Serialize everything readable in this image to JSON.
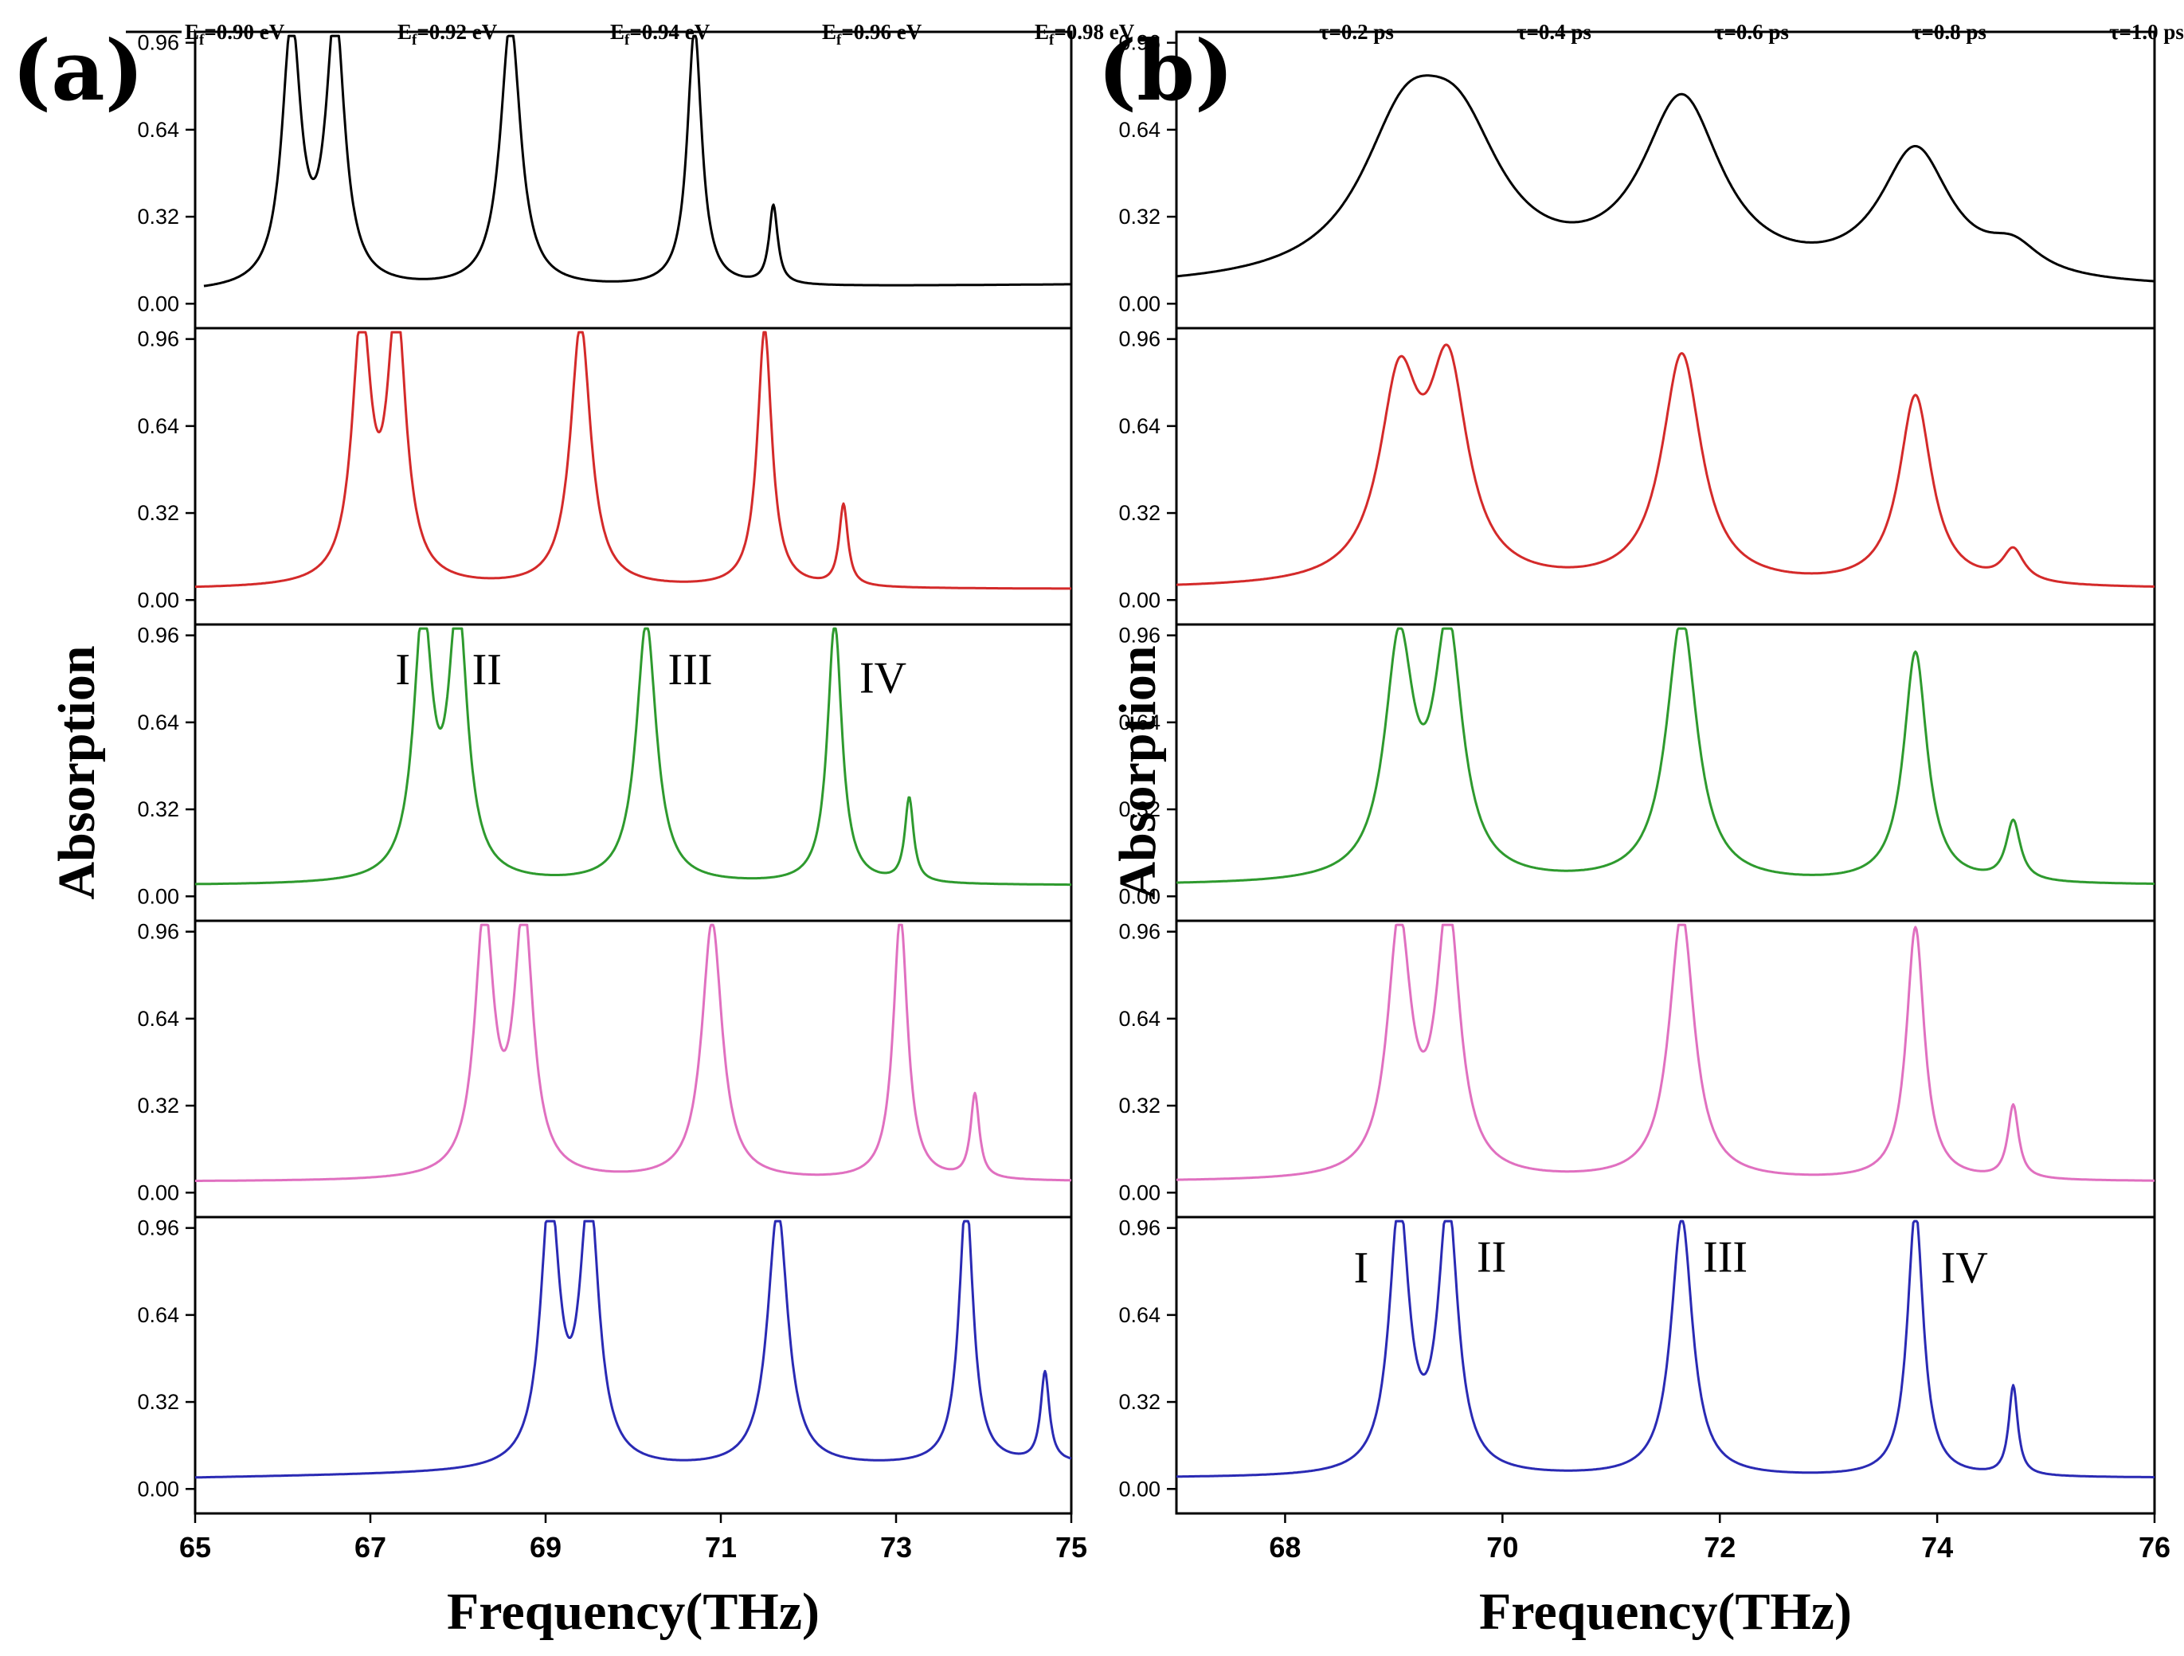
{
  "chart_data": [
    {
      "panel": "(a)",
      "type": "line",
      "layout": "stacked",
      "xlabel": "Frequency(THz)",
      "ylabel": "Absorption",
      "xlim": [
        65,
        75
      ],
      "ylim": [
        -0.09,
        1.0
      ],
      "xticks": [
        65,
        67,
        69,
        71,
        73,
        75
      ],
      "yticks": [
        0.0,
        0.32,
        0.64,
        0.96
      ],
      "ytick_labels": [
        "0.00",
        "0.32",
        "0.64",
        "0.96"
      ],
      "legend": [
        "E_f=0.90 eV",
        "E_f=0.92 eV",
        "E_f=0.94 eV",
        "E_f=0.96 eV",
        "E_f=0.98 eV"
      ],
      "series": [
        {
          "name": "E_f=0.90 eV",
          "color": "#000000",
          "baseline": 0.04,
          "tail": 0.07,
          "x_start": 65.1,
          "peaks": [
            {
              "x": 66.1,
              "a": 0.95,
              "w": 0.13
            },
            {
              "x": 66.6,
              "a": 0.98,
              "w": 0.13
            },
            {
              "x": 68.6,
              "a": 0.98,
              "w": 0.14
            },
            {
              "x": 70.7,
              "a": 0.95,
              "w": 0.1
            },
            {
              "x": 71.6,
              "a": 0.29,
              "w": 0.06
            }
          ]
        },
        {
          "name": "E_f=0.92 eV",
          "color": "#d42a2a",
          "baseline": 0.04,
          "tail": 0.04,
          "x_start": 65.0,
          "peaks": [
            {
              "x": 66.9,
              "a": 0.95,
              "w": 0.13
            },
            {
              "x": 67.3,
              "a": 0.98,
              "w": 0.13
            },
            {
              "x": 69.4,
              "a": 0.97,
              "w": 0.14
            },
            {
              "x": 71.5,
              "a": 0.95,
              "w": 0.1
            },
            {
              "x": 72.4,
              "a": 0.3,
              "w": 0.06
            }
          ]
        },
        {
          "name": "E_f=0.94 eV",
          "color": "#2e9a2e",
          "baseline": 0.04,
          "tail": 0.04,
          "x_start": 65.0,
          "peaks": [
            {
              "x": 67.6,
              "a": 0.95,
              "w": 0.13
            },
            {
              "x": 68.0,
              "a": 0.98,
              "w": 0.13
            },
            {
              "x": 70.15,
              "a": 0.96,
              "w": 0.14
            },
            {
              "x": 72.3,
              "a": 0.96,
              "w": 0.1
            },
            {
              "x": 73.15,
              "a": 0.31,
              "w": 0.06
            }
          ]
        },
        {
          "name": "E_f=0.96 eV",
          "color": "#e070c0",
          "baseline": 0.04,
          "tail": 0.04,
          "x_start": 65.0,
          "peaks": [
            {
              "x": 68.3,
              "a": 0.95,
              "w": 0.13
            },
            {
              "x": 68.75,
              "a": 0.96,
              "w": 0.13
            },
            {
              "x": 70.9,
              "a": 0.95,
              "w": 0.14
            },
            {
              "x": 73.05,
              "a": 0.97,
              "w": 0.1
            },
            {
              "x": 73.9,
              "a": 0.31,
              "w": 0.06
            }
          ]
        },
        {
          "name": "E_f=0.98 eV",
          "color": "#2a2ab4",
          "baseline": 0.04,
          "tail": 0.09,
          "x_start": 65.0,
          "peaks": [
            {
              "x": 69.05,
              "a": 0.98,
              "w": 0.13
            },
            {
              "x": 69.5,
              "a": 0.98,
              "w": 0.13
            },
            {
              "x": 71.65,
              "a": 0.95,
              "w": 0.14
            },
            {
              "x": 73.8,
              "a": 0.98,
              "w": 0.1
            },
            {
              "x": 74.7,
              "a": 0.33,
              "w": 0.06
            }
          ]
        }
      ],
      "annotations": [
        {
          "text": "I",
          "row": 2,
          "x": 67.37,
          "y": 0.78
        },
        {
          "text": "II",
          "row": 2,
          "x": 68.33,
          "y": 0.78
        },
        {
          "text": "III",
          "row": 2,
          "x": 70.65,
          "y": 0.78
        },
        {
          "text": "IV",
          "row": 2,
          "x": 72.85,
          "y": 0.75
        }
      ]
    },
    {
      "panel": "(b)",
      "type": "line",
      "layout": "stacked",
      "xlabel": "Frequency(THz)",
      "ylabel": "Absorption",
      "xlim": [
        67,
        76
      ],
      "ylim": [
        -0.09,
        1.0
      ],
      "xticks": [
        68,
        70,
        72,
        74,
        76
      ],
      "yticks": [
        0.0,
        0.32,
        0.64,
        0.96
      ],
      "ytick_labels": [
        "0.00",
        "0.32",
        "0.64",
        "0.96"
      ],
      "legend": [
        "τ=0.2 ps",
        "τ=0.4 ps",
        "τ=0.6 ps",
        "τ=0.8 ps",
        "τ=1.0 ps"
      ],
      "series": [
        {
          "name": "τ=0.2 ps",
          "color": "#000000",
          "baseline": 0.05,
          "tail": 0.05,
          "x_start": 67.0,
          "peaks": [
            {
              "x": 69.1,
              "a": 0.5,
              "w": 0.5
            },
            {
              "x": 69.6,
              "a": 0.45,
              "w": 0.5
            },
            {
              "x": 71.65,
              "a": 0.66,
              "w": 0.45
            },
            {
              "x": 73.8,
              "a": 0.48,
              "w": 0.4
            },
            {
              "x": 74.7,
              "a": 0.1,
              "w": 0.3
            }
          ]
        },
        {
          "name": "τ=0.4 ps",
          "color": "#d42a2a",
          "baseline": 0.04,
          "tail": 0.04,
          "x_start": 67.0,
          "peaks": [
            {
              "x": 69.05,
              "a": 0.7,
              "w": 0.22
            },
            {
              "x": 69.5,
              "a": 0.75,
              "w": 0.22
            },
            {
              "x": 71.65,
              "a": 0.85,
              "w": 0.22
            },
            {
              "x": 73.8,
              "a": 0.7,
              "w": 0.18
            },
            {
              "x": 74.7,
              "a": 0.12,
              "w": 0.12
            }
          ]
        },
        {
          "name": "τ=0.6 ps",
          "color": "#2e9a2e",
          "baseline": 0.04,
          "tail": 0.04,
          "x_start": 67.0,
          "peaks": [
            {
              "x": 69.05,
              "a": 0.85,
              "w": 0.16
            },
            {
              "x": 69.5,
              "a": 0.9,
              "w": 0.16
            },
            {
              "x": 71.65,
              "a": 0.98,
              "w": 0.17
            },
            {
              "x": 73.8,
              "a": 0.85,
              "w": 0.13
            },
            {
              "x": 74.7,
              "a": 0.22,
              "w": 0.08
            }
          ]
        },
        {
          "name": "τ=0.8 ps",
          "color": "#e070c0",
          "baseline": 0.04,
          "tail": 0.04,
          "x_start": 67.0,
          "peaks": [
            {
              "x": 69.05,
              "a": 0.92,
              "w": 0.13
            },
            {
              "x": 69.5,
              "a": 0.98,
              "w": 0.13
            },
            {
              "x": 71.65,
              "a": 0.98,
              "w": 0.14
            },
            {
              "x": 73.8,
              "a": 0.93,
              "w": 0.1
            },
            {
              "x": 74.7,
              "a": 0.27,
              "w": 0.06
            }
          ]
        },
        {
          "name": "τ=1.0 ps",
          "color": "#2a2ab4",
          "baseline": 0.04,
          "tail": 0.04,
          "x_start": 67.0,
          "peaks": [
            {
              "x": 69.05,
              "a": 0.98,
              "w": 0.11
            },
            {
              "x": 69.5,
              "a": 0.98,
              "w": 0.11
            },
            {
              "x": 71.65,
              "a": 0.95,
              "w": 0.12
            },
            {
              "x": 73.8,
              "a": 0.98,
              "w": 0.09
            },
            {
              "x": 74.7,
              "a": 0.33,
              "w": 0.05
            }
          ]
        }
      ],
      "annotations": [
        {
          "text": "I",
          "row": 4,
          "x": 68.7,
          "y": 0.76
        },
        {
          "text": "II",
          "row": 4,
          "x": 69.9,
          "y": 0.8
        },
        {
          "text": "III",
          "row": 4,
          "x": 72.05,
          "y": 0.8
        },
        {
          "text": "IV",
          "row": 4,
          "x": 74.25,
          "y": 0.76
        }
      ]
    }
  ]
}
